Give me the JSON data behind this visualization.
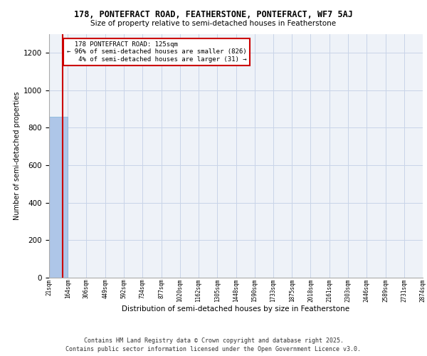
{
  "title": "178, PONTEFRACT ROAD, FEATHERSTONE, PONTEFRACT, WF7 5AJ",
  "subtitle": "Size of property relative to semi-detached houses in Featherstone",
  "xlabel": "Distribution of semi-detached houses by size in Featherstone",
  "ylabel": "Number of semi-detached properties",
  "bar_color": "#aec6e8",
  "bar_edge_color": "#7ab0d8",
  "grid_color": "#c8d4e8",
  "background_color": "#eef2f8",
  "annotation_box_color": "#cc0000",
  "property_line_color": "#cc0000",
  "bin_edges": [
    21,
    164,
    306,
    449,
    592,
    734,
    877,
    1020,
    1162,
    1305,
    1448,
    1590,
    1733,
    1875,
    2018,
    2161,
    2303,
    2446,
    2589,
    2731,
    2874
  ],
  "bin_labels": [
    "21sqm",
    "164sqm",
    "306sqm",
    "449sqm",
    "592sqm",
    "734sqm",
    "877sqm",
    "1020sqm",
    "1162sqm",
    "1305sqm",
    "1448sqm",
    "1590sqm",
    "1733sqm",
    "1875sqm",
    "2018sqm",
    "2161sqm",
    "2303sqm",
    "2446sqm",
    "2589sqm",
    "2731sqm",
    "2874sqm"
  ],
  "bar_heights": [
    857,
    0,
    0,
    0,
    0,
    0,
    0,
    0,
    0,
    0,
    0,
    0,
    0,
    0,
    0,
    0,
    0,
    0,
    0,
    0
  ],
  "property_size": 125,
  "property_label": "178 PONTEFRACT ROAD: 125sqm",
  "pct_smaller": 96,
  "n_smaller": 826,
  "pct_larger": 4,
  "n_larger": 31,
  "ylim": [
    0,
    1300
  ],
  "yticks": [
    0,
    200,
    400,
    600,
    800,
    1000,
    1200
  ],
  "footer_line1": "Contains HM Land Registry data © Crown copyright and database right 2025.",
  "footer_line2": "Contains public sector information licensed under the Open Government Licence v3.0."
}
